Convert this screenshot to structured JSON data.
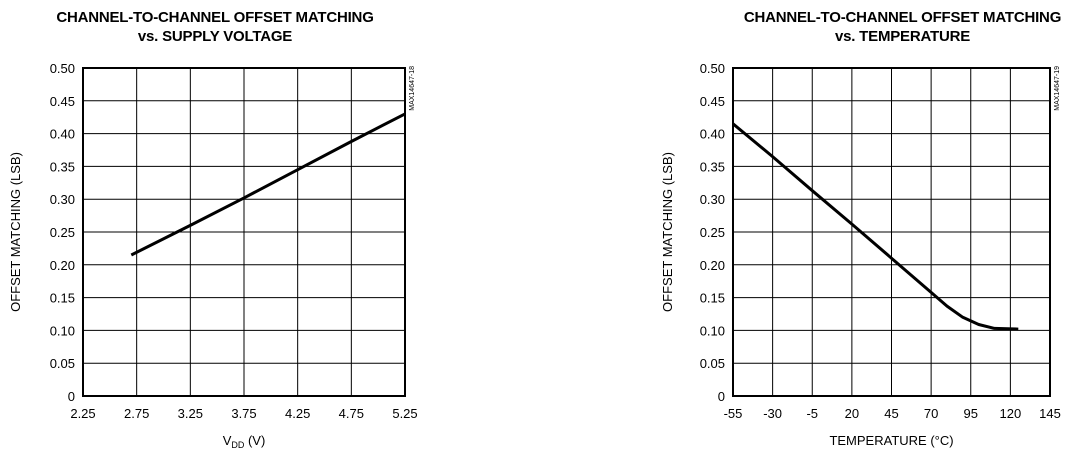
{
  "chart_data": [
    {
      "type": "line",
      "title_line1": "CHANNEL-TO-CHANNEL OFFSET MATCHING",
      "title_line2": "vs. SUPPLY VOLTAGE",
      "xlabel_main": "V",
      "xlabel_sub": "DD",
      "xlabel_unit": " (V)",
      "ylabel": "OFFSET MATCHING (LSB)",
      "code": "MAX14647-18",
      "xlim": [
        2.25,
        5.25
      ],
      "ylim": [
        0,
        0.5
      ],
      "xticks": [
        "2.25",
        "2.75",
        "3.25",
        "3.75",
        "4.25",
        "4.75",
        "5.25"
      ],
      "yticks": [
        "0",
        "0.05",
        "0.10",
        "0.15",
        "0.20",
        "0.25",
        "0.30",
        "0.35",
        "0.40",
        "0.45",
        "0.50"
      ],
      "grid": true,
      "series": [
        {
          "x": [
            2.7,
            3.25,
            3.75,
            4.25,
            4.75,
            5.25
          ],
          "y": [
            0.215,
            0.26,
            0.302,
            0.345,
            0.388,
            0.43
          ]
        }
      ]
    },
    {
      "type": "line",
      "title_line1": "CHANNEL-TO-CHANNEL OFFSET MATCHING",
      "title_line2": "vs. TEMPERATURE",
      "xlabel": "TEMPERATURE (°C)",
      "ylabel": "OFFSET MATCHING (LSB)",
      "code": "MAX14647-19",
      "xlim": [
        -55,
        145
      ],
      "ylim": [
        0,
        0.5
      ],
      "xticks": [
        "-55",
        "-30",
        "-5",
        "20",
        "45",
        "70",
        "95",
        "120",
        "145"
      ],
      "yticks": [
        "0",
        "0.05",
        "0.10",
        "0.15",
        "0.20",
        "0.25",
        "0.30",
        "0.35",
        "0.40",
        "0.45",
        "0.50"
      ],
      "grid": true,
      "series": [
        {
          "x": [
            -55,
            -30,
            -5,
            20,
            45,
            70,
            80,
            90,
            100,
            110,
            125
          ],
          "y": [
            0.415,
            0.365,
            0.313,
            0.262,
            0.21,
            0.158,
            0.137,
            0.12,
            0.109,
            0.103,
            0.102
          ]
        }
      ]
    }
  ]
}
